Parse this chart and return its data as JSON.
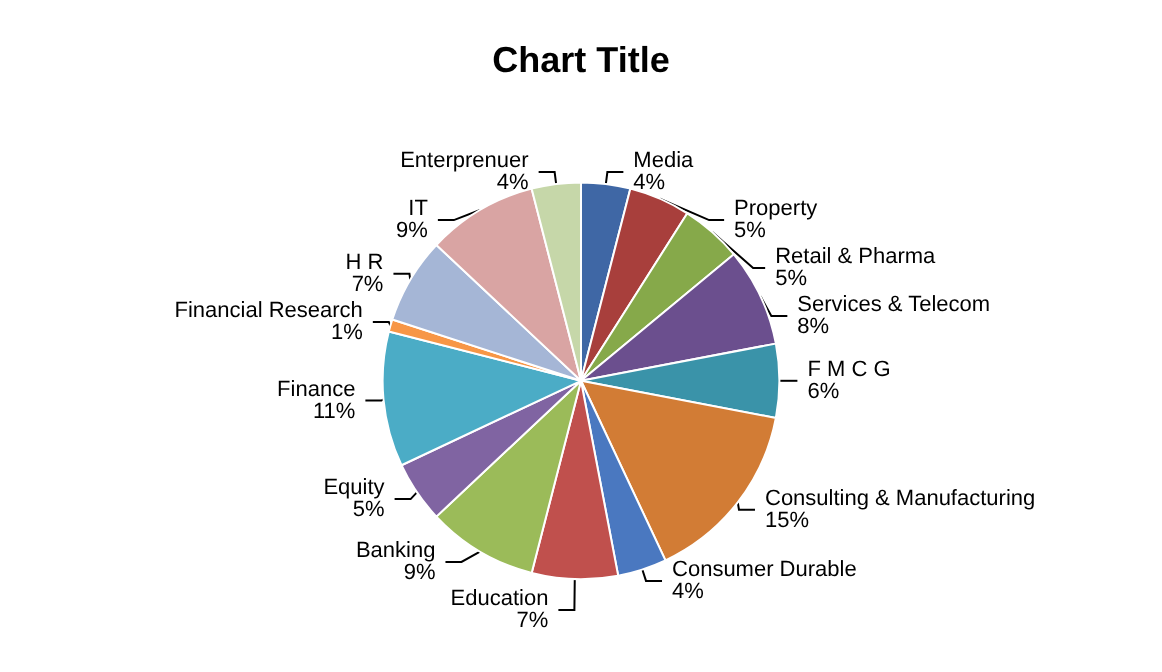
{
  "chart_data": {
    "type": "pie",
    "title": "Chart Title",
    "categories": [
      "Media",
      "Property",
      "Retail & Pharma",
      "Services & Telecom",
      "F M C G",
      "Consulting & Manufacturing",
      "Consumer Durable",
      "Education",
      "Banking",
      "Equity",
      "Finance",
      "Financial Research",
      "H R",
      "IT",
      "Enterprenuer"
    ],
    "values": [
      4,
      5,
      5,
      8,
      6,
      15,
      4,
      7,
      9,
      5,
      11,
      1,
      7,
      9,
      4
    ],
    "value_labels": [
      "4%",
      "5%",
      "5%",
      "8%",
      "6%",
      "15%",
      "4%",
      "7%",
      "9%",
      "5%",
      "11%",
      "1%",
      "7%",
      "9%",
      "4%"
    ],
    "colors": [
      "#3f67a5",
      "#a83f3c",
      "#86a94a",
      "#6b4f8e",
      "#3a93a9",
      "#d27c35",
      "#4a78c0",
      "#c0504d",
      "#9bbb59",
      "#8064a2",
      "#4bacc6",
      "#f79646",
      "#a5b6d6",
      "#d9a4a3",
      "#c6d7a9"
    ],
    "legend": false
  }
}
